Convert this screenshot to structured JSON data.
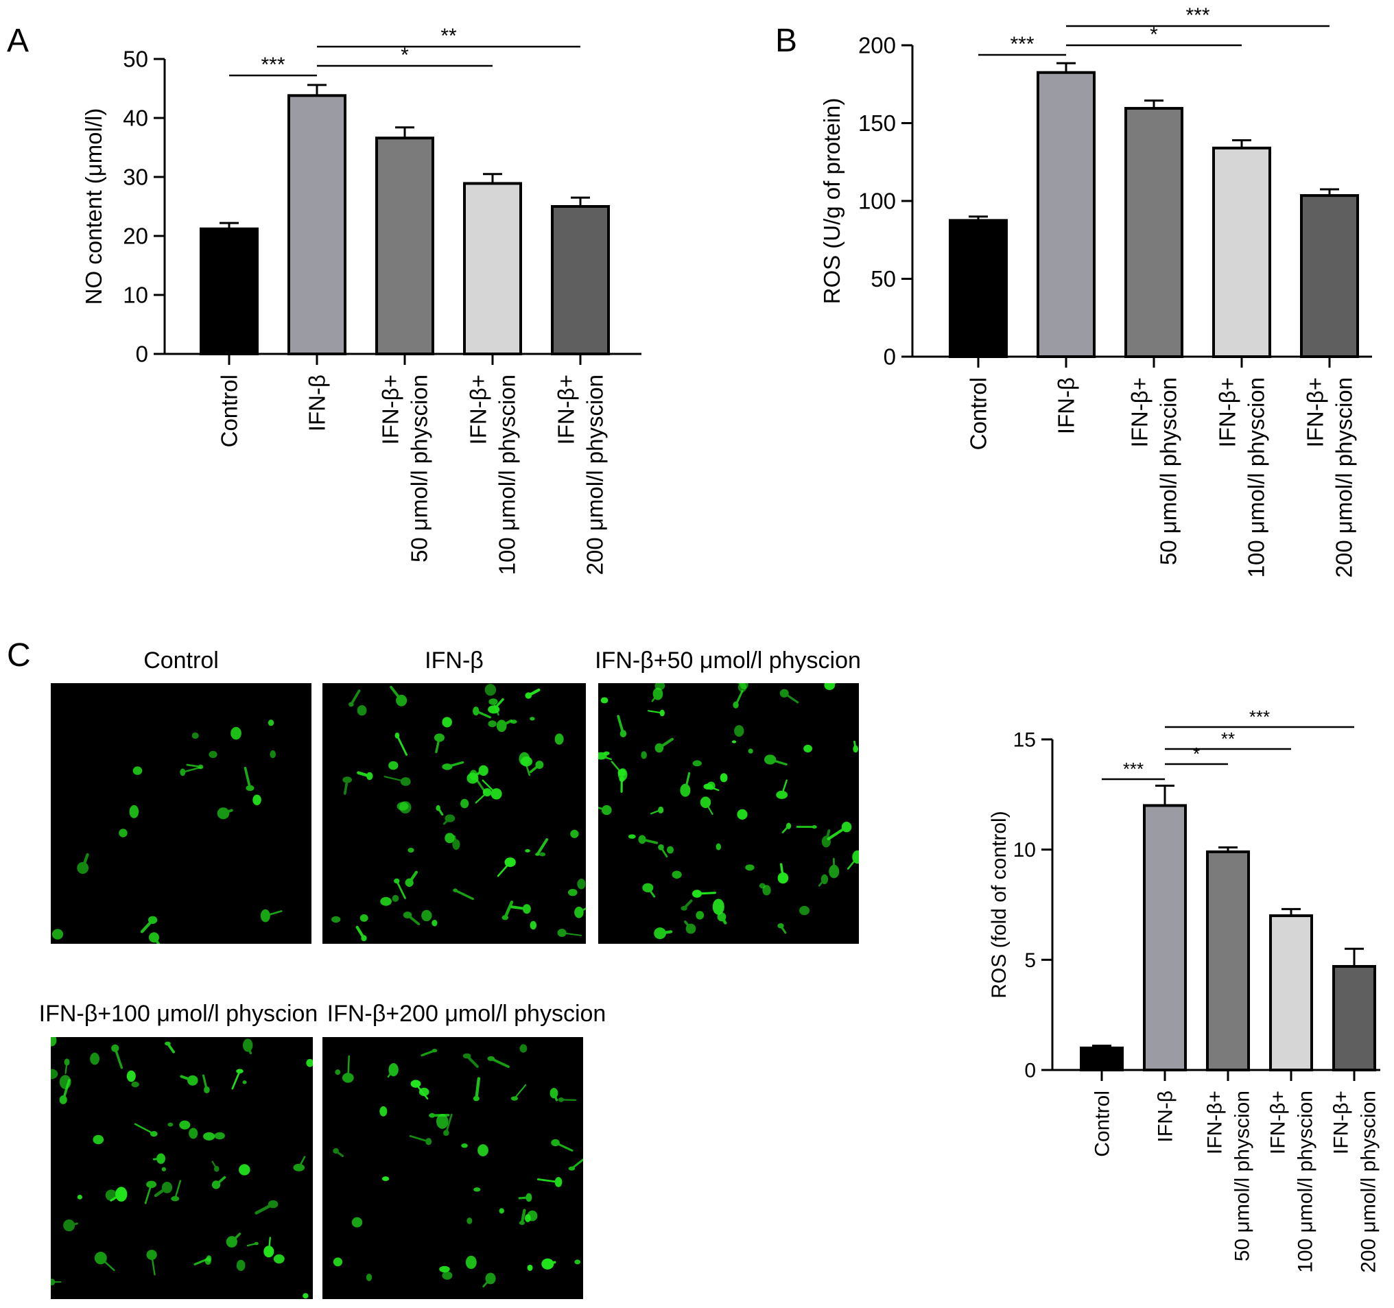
{
  "panels": {
    "a": {
      "letter": "A"
    },
    "b": {
      "letter": "B"
    },
    "c": {
      "letter": "C"
    }
  },
  "colors": {
    "control": "#000000",
    "ifn": "#9b9ba4",
    "p50": "#7b7b7b",
    "p100": "#d6d6d6",
    "p200": "#5f5f5f",
    "fluorescence": "#22e61c"
  },
  "micrographs": {
    "titles": [
      "Control",
      "IFN-β",
      "IFN-β+50 μmol/l physcion",
      "IFN-β+100 μmol/l physcion",
      "IFN-β+200 μmol/l physcion"
    ]
  },
  "chart_data": [
    {
      "id": "A",
      "type": "bar",
      "ylabel": "NO content (μmol/l)",
      "ylim": [
        0,
        50
      ],
      "yticks": [
        0,
        10,
        20,
        30,
        40,
        50
      ],
      "categories": [
        [
          "Control"
        ],
        [
          "IFN-β"
        ],
        [
          "IFN-β+",
          "50 μmol/l physcion"
        ],
        [
          "IFN-β+",
          "100 μmol/l physcion"
        ],
        [
          "IFN-β+",
          "200 μmol/l physcion"
        ]
      ],
      "values": [
        21.2,
        43.8,
        36.6,
        28.9,
        25.0
      ],
      "errors": [
        1.0,
        1.8,
        1.8,
        1.6,
        1.5
      ],
      "significance": [
        {
          "from": 0,
          "to": 1,
          "label": "***"
        },
        {
          "from": 1,
          "to": 3,
          "label": "*"
        },
        {
          "from": 1,
          "to": 4,
          "label": "**"
        }
      ]
    },
    {
      "id": "B",
      "type": "bar",
      "ylabel": "ROS (U/g of protein)",
      "ylim": [
        0,
        200
      ],
      "yticks": [
        0,
        50,
        100,
        150,
        200
      ],
      "categories": [
        [
          "Control"
        ],
        [
          "IFN-β"
        ],
        [
          "IFN-β+",
          "50 μmol/l physcion"
        ],
        [
          "IFN-β+",
          "100 μmol/l physcion"
        ],
        [
          "IFN-β+",
          "200 μmol/l physcion"
        ]
      ],
      "values": [
        87.5,
        182.5,
        159.5,
        134.0,
        103.5
      ],
      "errors": [
        2.5,
        6.0,
        5.0,
        5.0,
        4.0
      ],
      "significance": [
        {
          "from": 0,
          "to": 1,
          "label": "***"
        },
        {
          "from": 1,
          "to": 3,
          "label": "*"
        },
        {
          "from": 1,
          "to": 4,
          "label": "***"
        }
      ]
    },
    {
      "id": "C",
      "type": "bar",
      "ylabel": "ROS (fold of control)",
      "ylim": [
        0,
        15
      ],
      "yticks": [
        0,
        5,
        10,
        15
      ],
      "categories": [
        [
          "Control"
        ],
        [
          "IFN-β"
        ],
        [
          "IFN-β+",
          "50 μmol/l physcion"
        ],
        [
          "IFN-β+",
          "100 μmol/l physcion"
        ],
        [
          "IFN-β+",
          "200 μmol/l physcion"
        ]
      ],
      "values": [
        1.0,
        12.0,
        9.9,
        7.0,
        4.7
      ],
      "errors": [
        0.1,
        0.9,
        0.2,
        0.3,
        0.8
      ],
      "significance": [
        {
          "from": 0,
          "to": 1,
          "label": "***"
        },
        {
          "from": 1,
          "to": 2,
          "label": "*"
        },
        {
          "from": 1,
          "to": 3,
          "label": "**"
        },
        {
          "from": 1,
          "to": 4,
          "label": "***"
        }
      ]
    }
  ]
}
